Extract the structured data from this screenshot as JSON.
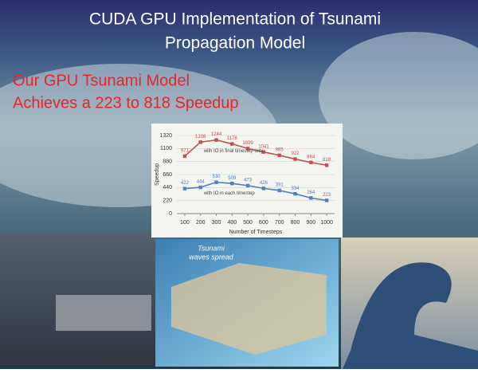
{
  "slide": {
    "title_lines": [
      "CUDA GPU Implementation of Tsunami",
      "Propagation Model"
    ],
    "headline_lines": [
      "Our GPU Tsunami Model",
      "Achieves a 223 to 818 Speedup"
    ],
    "image_caption_lines": [
      "Tsunami",
      "waves spread"
    ]
  },
  "chart_data": {
    "type": "line",
    "x": [
      100,
      200,
      300,
      400,
      500,
      600,
      700,
      800,
      900,
      1000
    ],
    "xlim": [
      50,
      1050
    ],
    "xticks": [
      100,
      200,
      300,
      400,
      500,
      600,
      700,
      800,
      900,
      1000
    ],
    "ylim": [
      0,
      1320
    ],
    "yticks": [
      0,
      220,
      440,
      660,
      880,
      1100,
      1320
    ],
    "x_label": "Number of Timesteps",
    "y_label": "Speedup",
    "grid": true,
    "series": [
      {
        "name": "with IO in final timestep only",
        "color": "#c0504d",
        "values": [
          971,
          1208,
          1244,
          1178,
          1099,
          1041,
          985,
          922,
          864,
          818
        ]
      },
      {
        "name": "with IO in each timestep",
        "color": "#4f81bd",
        "values": [
          422,
          444,
          530,
          509,
          473,
          426,
          391,
          334,
          264,
          223
        ]
      }
    ]
  }
}
